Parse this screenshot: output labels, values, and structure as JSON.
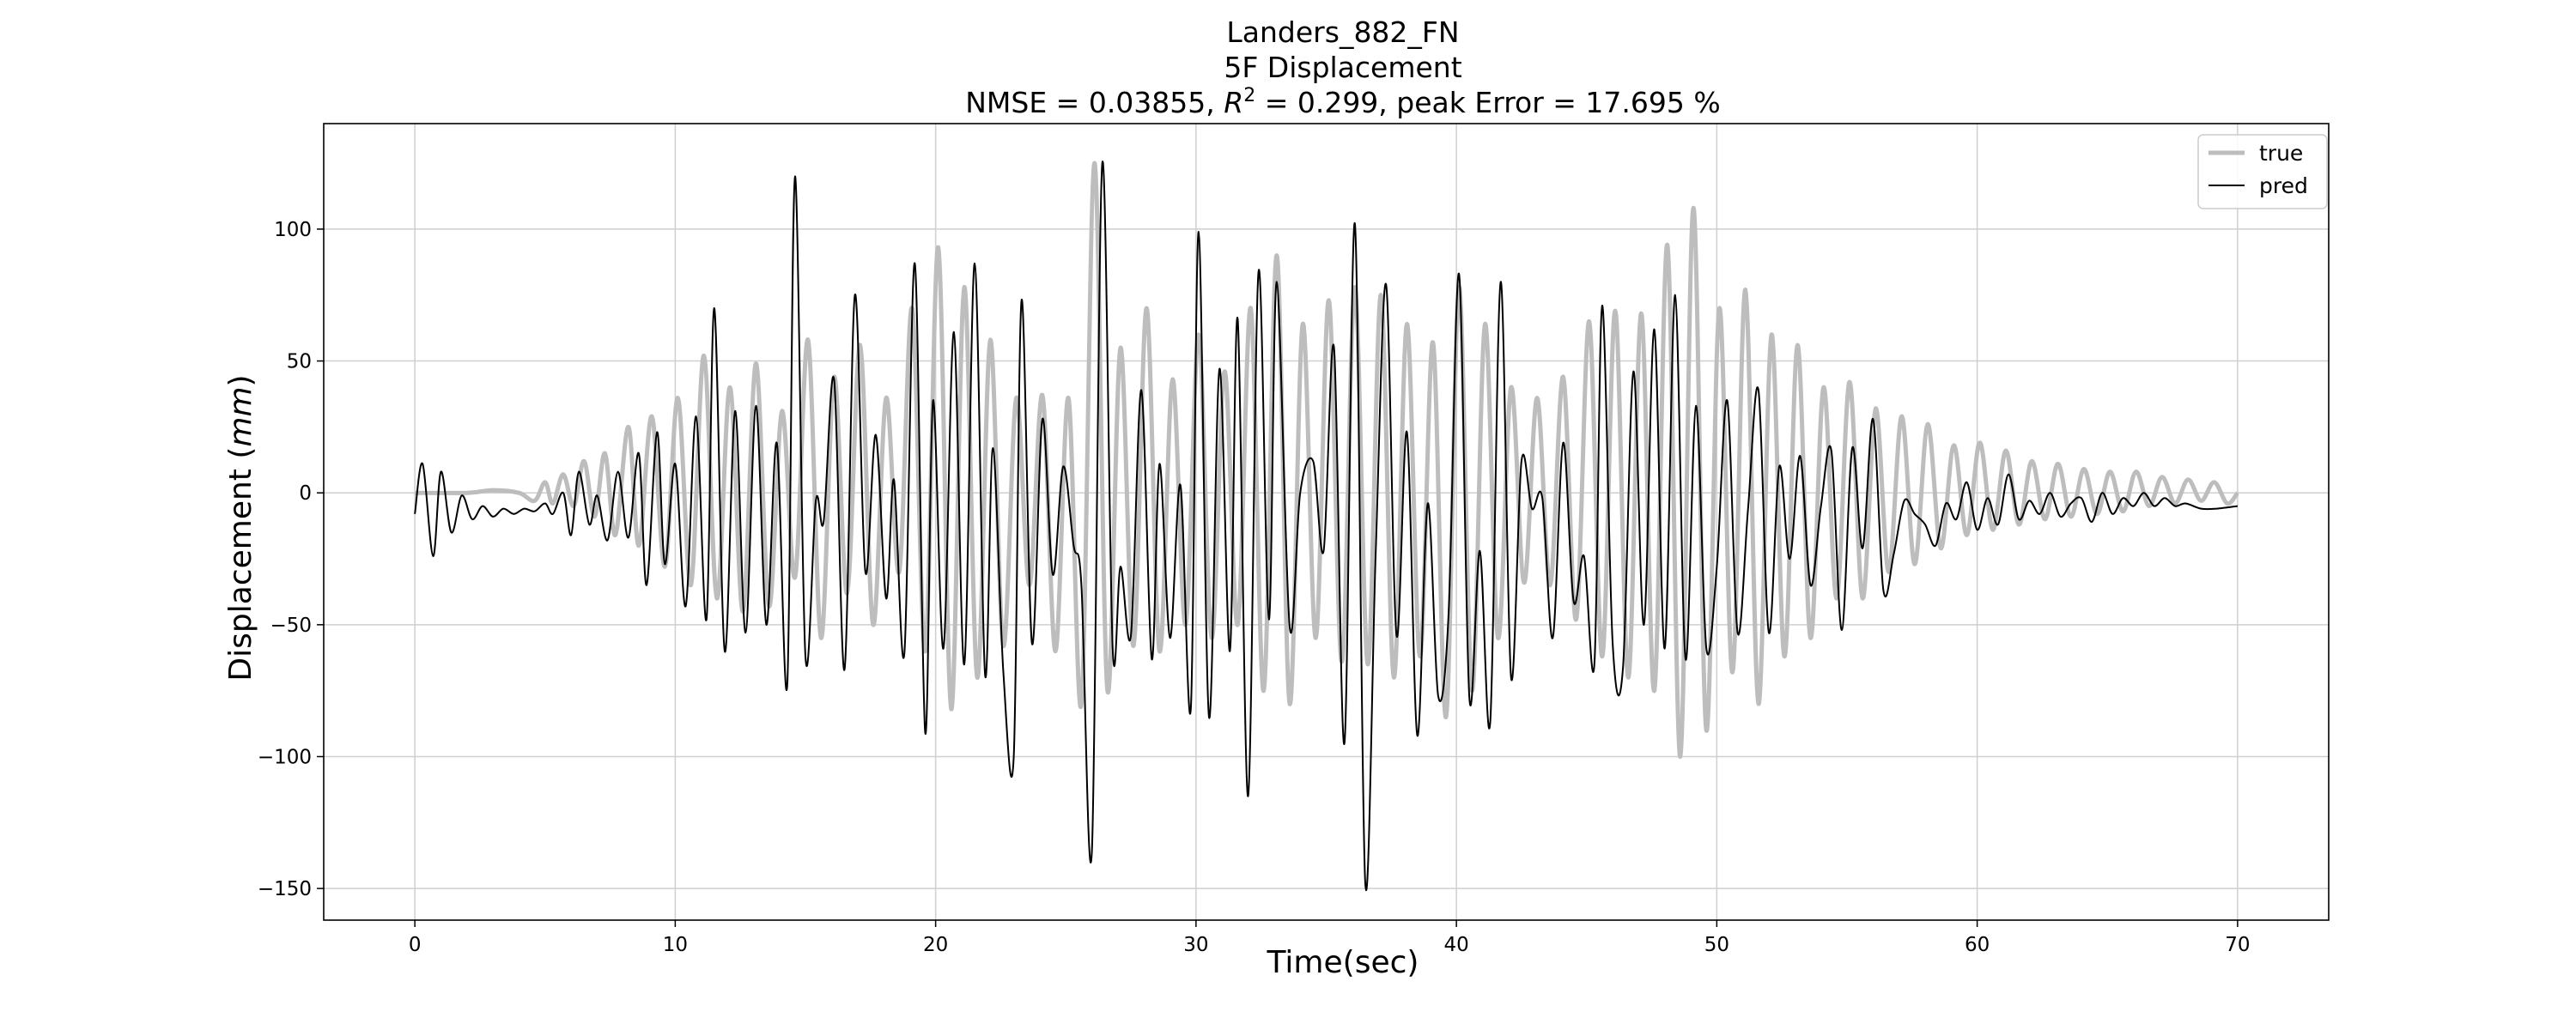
{
  "chart_data": {
    "type": "line",
    "title_lines": [
      "Landers_882_FN",
      "5F Displacement"
    ],
    "metrics": {
      "nmse_label": "NMSE = 0.03855, ",
      "r2_label": "R",
      "r2_sup": "2",
      "r2_rest": " = 0.299, peak Error = 17.695 %"
    },
    "xlabel": "Time(sec)",
    "ylabel_prefix": "Displacement (",
    "ylabel_unit": "mm",
    "ylabel_suffix": ")",
    "xlim": [
      -3.5,
      73.5
    ],
    "ylim": [
      -162,
      140
    ],
    "xticks": [
      0,
      10,
      20,
      30,
      40,
      50,
      60,
      70
    ],
    "xtick_labels": [
      "0",
      "10",
      "20",
      "30",
      "40",
      "50",
      "60",
      "70"
    ],
    "yticks": [
      -150,
      -100,
      -50,
      0,
      50,
      100
    ],
    "ytick_labels": [
      "−150",
      "−100",
      "−50",
      "0",
      "50",
      "100"
    ],
    "grid": true,
    "legend_placement": "top-right",
    "series": [
      {
        "name": "true",
        "color": "#bdbdbd",
        "points": [
          [
            0,
            0
          ],
          [
            2,
            0
          ],
          [
            3,
            1
          ],
          [
            4,
            0
          ],
          [
            4.6,
            -3
          ],
          [
            5,
            4
          ],
          [
            5.3,
            -4
          ],
          [
            5.7,
            7
          ],
          [
            6.1,
            -5
          ],
          [
            6.5,
            12
          ],
          [
            6.9,
            -9
          ],
          [
            7.3,
            15
          ],
          [
            7.7,
            -16
          ],
          [
            8.2,
            25
          ],
          [
            8.6,
            -20
          ],
          [
            9.1,
            29
          ],
          [
            9.6,
            -28
          ],
          [
            10.1,
            36
          ],
          [
            10.6,
            -35
          ],
          [
            11.1,
            52
          ],
          [
            11.6,
            -40
          ],
          [
            12.1,
            40
          ],
          [
            12.6,
            -45
          ],
          [
            13.1,
            49
          ],
          [
            13.6,
            -43
          ],
          [
            14.1,
            31
          ],
          [
            14.6,
            -32
          ],
          [
            15.1,
            58
          ],
          [
            15.6,
            -55
          ],
          [
            16.1,
            44
          ],
          [
            16.6,
            -38
          ],
          [
            17.1,
            56
          ],
          [
            17.6,
            -50
          ],
          [
            18.1,
            36
          ],
          [
            18.6,
            -30
          ],
          [
            19.1,
            70
          ],
          [
            19.6,
            -60
          ],
          [
            20.1,
            93
          ],
          [
            20.6,
            -82
          ],
          [
            21.1,
            78
          ],
          [
            21.6,
            -70
          ],
          [
            22.1,
            58
          ],
          [
            22.6,
            -58
          ],
          [
            23.1,
            36
          ],
          [
            23.6,
            -35
          ],
          [
            24.1,
            37
          ],
          [
            24.6,
            -60
          ],
          [
            25.1,
            36
          ],
          [
            25.6,
            -80
          ],
          [
            26.1,
            125
          ],
          [
            26.6,
            -75
          ],
          [
            27.1,
            55
          ],
          [
            27.6,
            -58
          ],
          [
            28.1,
            70
          ],
          [
            28.6,
            -60
          ],
          [
            29.1,
            43
          ],
          [
            29.6,
            -50
          ],
          [
            30.1,
            60
          ],
          [
            30.6,
            -55
          ],
          [
            31.1,
            46
          ],
          [
            31.6,
            -50
          ],
          [
            32.1,
            70
          ],
          [
            32.6,
            -75
          ],
          [
            33.1,
            90
          ],
          [
            33.6,
            -80
          ],
          [
            34.1,
            64
          ],
          [
            34.6,
            -55
          ],
          [
            35.1,
            73
          ],
          [
            35.6,
            -64
          ],
          [
            36.1,
            78
          ],
          [
            36.6,
            -65
          ],
          [
            37.1,
            75
          ],
          [
            37.6,
            -70
          ],
          [
            38.1,
            64
          ],
          [
            38.6,
            -62
          ],
          [
            39.1,
            57
          ],
          [
            39.6,
            -85
          ],
          [
            40.1,
            78
          ],
          [
            40.6,
            -75
          ],
          [
            41.1,
            64
          ],
          [
            41.6,
            -55
          ],
          [
            42.1,
            40
          ],
          [
            42.6,
            -34
          ],
          [
            43.1,
            36
          ],
          [
            43.6,
            -35
          ],
          [
            44.1,
            44
          ],
          [
            44.6,
            -48
          ],
          [
            45.1,
            65
          ],
          [
            45.6,
            -62
          ],
          [
            46.1,
            69
          ],
          [
            46.6,
            -70
          ],
          [
            47.1,
            68
          ],
          [
            47.6,
            -75
          ],
          [
            48.1,
            94
          ],
          [
            48.6,
            -100
          ],
          [
            49.1,
            108
          ],
          [
            49.6,
            -90
          ],
          [
            50.1,
            70
          ],
          [
            50.6,
            -68
          ],
          [
            51.1,
            77
          ],
          [
            51.6,
            -80
          ],
          [
            52.1,
            60
          ],
          [
            52.6,
            -62
          ],
          [
            53.1,
            56
          ],
          [
            53.6,
            -55
          ],
          [
            54.1,
            40
          ],
          [
            54.6,
            -40
          ],
          [
            55.1,
            42
          ],
          [
            55.6,
            -40
          ],
          [
            56.1,
            32
          ],
          [
            56.6,
            -30
          ],
          [
            57.1,
            29
          ],
          [
            57.6,
            -27
          ],
          [
            58.1,
            26
          ],
          [
            58.6,
            -21
          ],
          [
            59.1,
            18
          ],
          [
            59.6,
            -16
          ],
          [
            60.1,
            19
          ],
          [
            60.6,
            -14
          ],
          [
            61.1,
            16
          ],
          [
            61.6,
            -12
          ],
          [
            62.1,
            12
          ],
          [
            62.6,
            -10
          ],
          [
            63.1,
            11
          ],
          [
            63.6,
            -9
          ],
          [
            64.1,
            9
          ],
          [
            64.6,
            -8
          ],
          [
            65.1,
            8
          ],
          [
            65.6,
            -7
          ],
          [
            66.1,
            8
          ],
          [
            66.6,
            -5
          ],
          [
            67.1,
            6
          ],
          [
            67.6,
            -4
          ],
          [
            68.1,
            5
          ],
          [
            68.6,
            -3
          ],
          [
            69.1,
            4
          ],
          [
            69.6,
            -4
          ],
          [
            70,
            0
          ]
        ]
      },
      {
        "name": "pred",
        "color": "#000000",
        "points": [
          [
            0,
            -8
          ],
          [
            0.3,
            11
          ],
          [
            0.7,
            -24
          ],
          [
            1,
            8
          ],
          [
            1.4,
            -15
          ],
          [
            1.8,
            -1
          ],
          [
            2.2,
            -10
          ],
          [
            2.6,
            -5
          ],
          [
            3,
            -9
          ],
          [
            3.4,
            -6
          ],
          [
            3.8,
            -8
          ],
          [
            4.2,
            -6
          ],
          [
            4.6,
            -7
          ],
          [
            5,
            -4
          ],
          [
            5.3,
            -8
          ],
          [
            5.7,
            0
          ],
          [
            6,
            -16
          ],
          [
            6.3,
            8
          ],
          [
            6.7,
            -12
          ],
          [
            7,
            -1
          ],
          [
            7.4,
            -18
          ],
          [
            7.8,
            8
          ],
          [
            8.2,
            -17
          ],
          [
            8.6,
            15
          ],
          [
            8.9,
            -35
          ],
          [
            9.3,
            23
          ],
          [
            9.6,
            -27
          ],
          [
            10,
            11
          ],
          [
            10.4,
            -43
          ],
          [
            10.8,
            29
          ],
          [
            11.2,
            -48
          ],
          [
            11.5,
            70
          ],
          [
            11.9,
            -60
          ],
          [
            12.3,
            31
          ],
          [
            12.7,
            -53
          ],
          [
            13.1,
            33
          ],
          [
            13.5,
            -50
          ],
          [
            13.9,
            19
          ],
          [
            14.3,
            -73
          ],
          [
            14.6,
            120
          ],
          [
            15,
            -62
          ],
          [
            15.4,
            -3
          ],
          [
            15.7,
            -11
          ],
          [
            16.1,
            43
          ],
          [
            16.5,
            -67
          ],
          [
            16.9,
            75
          ],
          [
            17.3,
            -30
          ],
          [
            17.7,
            22
          ],
          [
            18.1,
            -40
          ],
          [
            18.4,
            5
          ],
          [
            18.8,
            -61
          ],
          [
            19.2,
            87
          ],
          [
            19.6,
            -91
          ],
          [
            19.9,
            35
          ],
          [
            20.3,
            -59
          ],
          [
            20.7,
            61
          ],
          [
            21.1,
            -65
          ],
          [
            21.5,
            87
          ],
          [
            21.9,
            -69
          ],
          [
            22.2,
            17
          ],
          [
            22.6,
            -68
          ],
          [
            23,
            -100
          ],
          [
            23.3,
            73
          ],
          [
            23.7,
            -57
          ],
          [
            24.1,
            28
          ],
          [
            24.5,
            -31
          ],
          [
            24.9,
            10
          ],
          [
            25.3,
            -20
          ],
          [
            25.6,
            -35
          ],
          [
            26,
            -136
          ],
          [
            26.4,
            125
          ],
          [
            26.8,
            -59
          ],
          [
            27.1,
            -28
          ],
          [
            27.5,
            -54
          ],
          [
            27.9,
            39
          ],
          [
            28.3,
            -63
          ],
          [
            28.6,
            11
          ],
          [
            29,
            -55
          ],
          [
            29.4,
            3
          ],
          [
            29.8,
            -82
          ],
          [
            30.1,
            99
          ],
          [
            30.5,
            -85
          ],
          [
            30.9,
            47
          ],
          [
            31.3,
            -60
          ],
          [
            31.6,
            66
          ],
          [
            32,
            -115
          ],
          [
            32.4,
            84
          ],
          [
            32.8,
            -48
          ],
          [
            33.1,
            80
          ],
          [
            33.6,
            -51
          ],
          [
            34,
            0
          ],
          [
            34.5,
            12
          ],
          [
            34.9,
            -22
          ],
          [
            35.3,
            55
          ],
          [
            35.7,
            -95
          ],
          [
            36.1,
            102
          ],
          [
            36.5,
            -148
          ],
          [
            36.9,
            -23
          ],
          [
            37.3,
            79
          ],
          [
            37.7,
            -54
          ],
          [
            38.1,
            23
          ],
          [
            38.5,
            -92
          ],
          [
            38.9,
            -4
          ],
          [
            39.3,
            -77
          ],
          [
            39.7,
            -46
          ],
          [
            40.1,
            83
          ],
          [
            40.5,
            -78
          ],
          [
            40.9,
            -22
          ],
          [
            41.3,
            -87
          ],
          [
            41.7,
            80
          ],
          [
            42.1,
            -70
          ],
          [
            42.5,
            12
          ],
          [
            42.9,
            -6
          ],
          [
            43.3,
            -2
          ],
          [
            43.7,
            -55
          ],
          [
            44.1,
            19
          ],
          [
            44.5,
            -41
          ],
          [
            44.9,
            -24
          ],
          [
            45.3,
            -65
          ],
          [
            45.6,
            71
          ],
          [
            46,
            -57
          ],
          [
            46.4,
            -66
          ],
          [
            46.8,
            46
          ],
          [
            47.2,
            -50
          ],
          [
            47.6,
            62
          ],
          [
            48,
            -59
          ],
          [
            48.4,
            75
          ],
          [
            48.8,
            -63
          ],
          [
            49.2,
            33
          ],
          [
            49.6,
            -59
          ],
          [
            50,
            -28
          ],
          [
            50.4,
            35
          ],
          [
            50.8,
            -53
          ],
          [
            51.2,
            -6
          ],
          [
            51.6,
            39
          ],
          [
            52,
            -53
          ],
          [
            52.4,
            10
          ],
          [
            52.8,
            -25
          ],
          [
            53.2,
            14
          ],
          [
            53.6,
            -35
          ],
          [
            54,
            -5
          ],
          [
            54.4,
            16
          ],
          [
            54.8,
            -52
          ],
          [
            55.2,
            17
          ],
          [
            55.6,
            -21
          ],
          [
            56,
            28
          ],
          [
            56.4,
            -37
          ],
          [
            56.8,
            -23
          ],
          [
            57.2,
            -3
          ],
          [
            57.6,
            -8
          ],
          [
            58,
            -12
          ],
          [
            58.4,
            -20
          ],
          [
            58.8,
            -4
          ],
          [
            59.2,
            -10
          ],
          [
            59.6,
            4
          ],
          [
            60,
            -14
          ],
          [
            60.4,
            -2
          ],
          [
            60.8,
            -12
          ],
          [
            61.2,
            7
          ],
          [
            61.6,
            -10
          ],
          [
            62,
            -3
          ],
          [
            62.4,
            -8
          ],
          [
            62.8,
            0
          ],
          [
            63.2,
            -9
          ],
          [
            63.6,
            -4
          ],
          [
            64,
            -2
          ],
          [
            64.4,
            -11
          ],
          [
            64.8,
            0
          ],
          [
            65.2,
            -8
          ],
          [
            65.6,
            -2
          ],
          [
            66,
            -5
          ],
          [
            66.4,
            0
          ],
          [
            66.8,
            -5
          ],
          [
            67.2,
            -2
          ],
          [
            67.6,
            -5
          ],
          [
            68,
            -4
          ],
          [
            68.6,
            -6
          ],
          [
            69.2,
            -6
          ],
          [
            70,
            -5
          ]
        ]
      }
    ]
  }
}
